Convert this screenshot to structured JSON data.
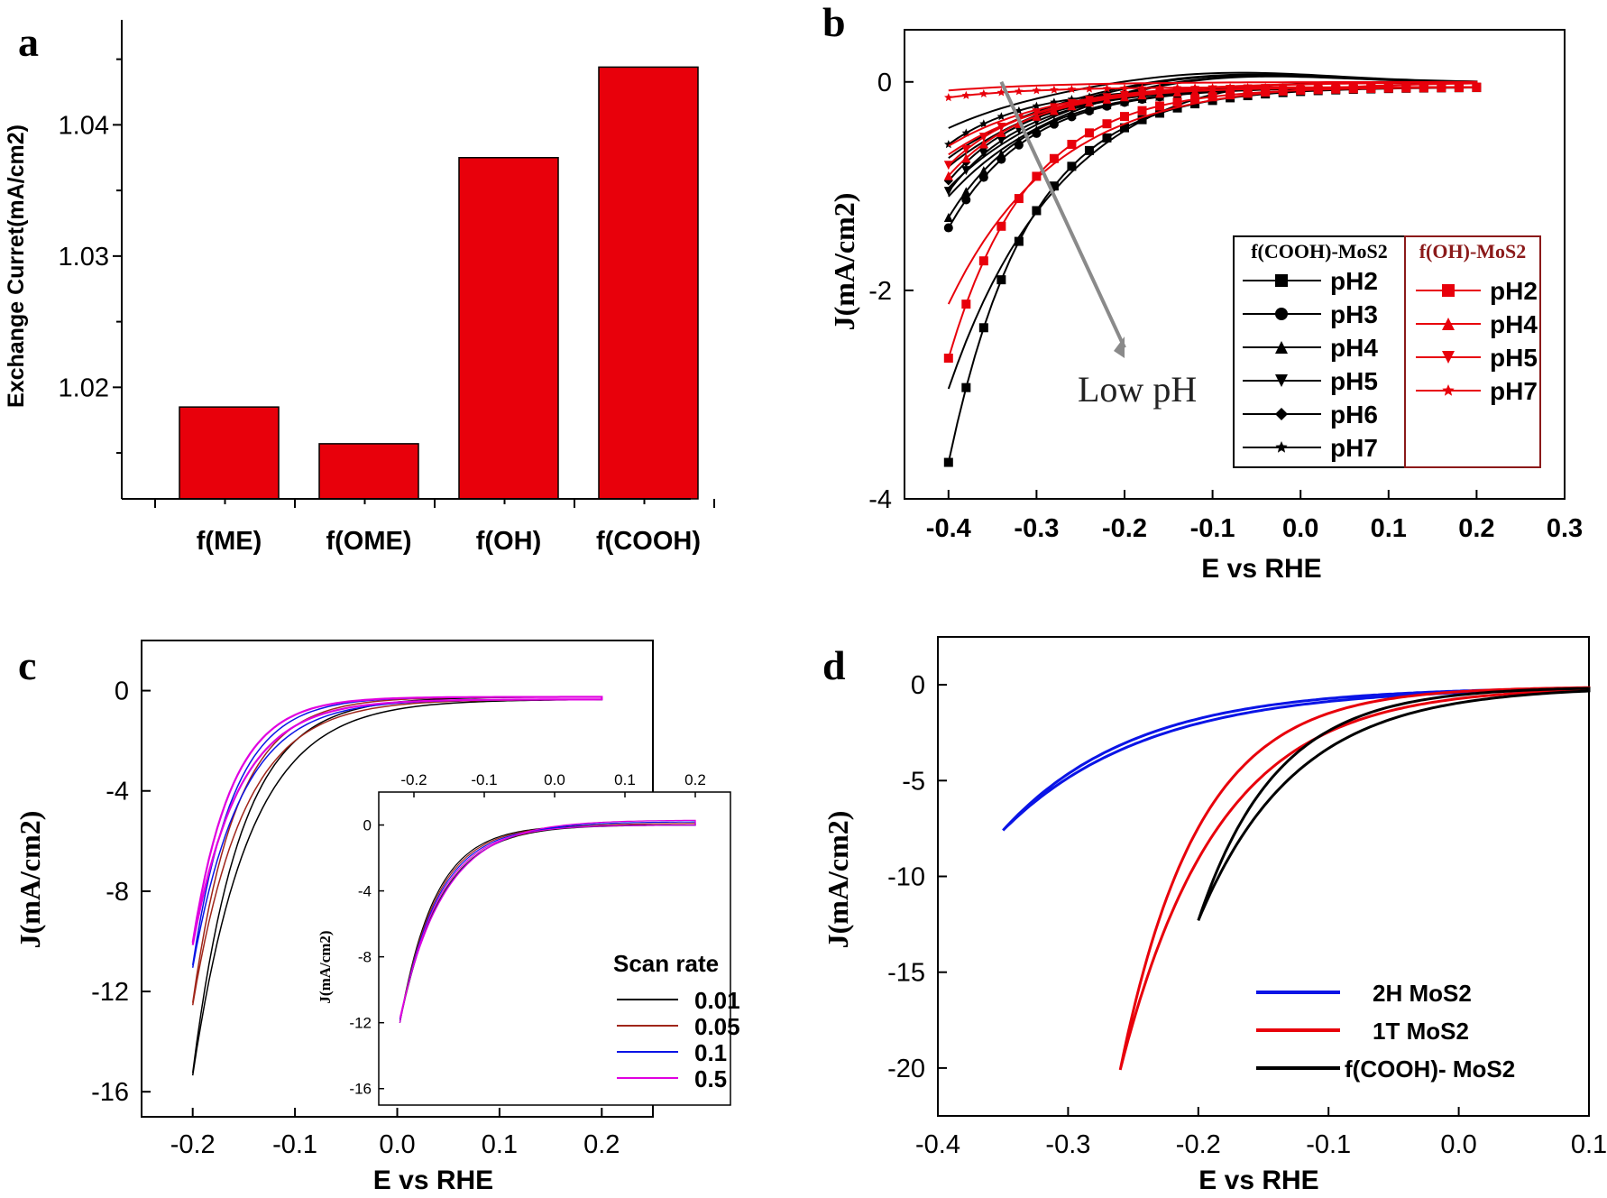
{
  "colors": {
    "red": "#e8000b",
    "black": "#000000",
    "blue": "#0a14e6",
    "magenta": "#e000e0",
    "brown": "#a0261a",
    "arrow": "#8a8a8a",
    "dark_red_text": "#8b1a1a"
  },
  "chart_data": [
    {
      "id": "a",
      "panel_label": "a",
      "type": "bar",
      "title": "",
      "xlabel": "",
      "ylabel": "Exchange Curret(mA/cm2)",
      "categories": [
        "f(ME)",
        "f(OME)",
        "f(OH)",
        "f(COOH)"
      ],
      "values": [
        1.0185,
        1.0157,
        1.0375,
        1.0444
      ],
      "ylim": [
        1.0115,
        1.048
      ],
      "yticks": [
        1.02,
        1.03,
        1.04
      ],
      "ytick_labels": [
        "1.02",
        "1.03",
        "1.04"
      ],
      "grid": false
    },
    {
      "id": "b",
      "panel_label": "b",
      "type": "line",
      "xlabel": "E vs RHE",
      "ylabel": "J(mA/cm2)",
      "xlim": [
        -0.45,
        0.3
      ],
      "ylim": [
        -4,
        0.5
      ],
      "xticks": [
        -0.4,
        -0.3,
        -0.2,
        -0.1,
        0.0,
        0.1,
        0.2,
        0.3
      ],
      "xtick_labels": [
        "-0.4",
        "-0.3",
        "-0.2",
        "-0.1",
        "0.0",
        "0.1",
        "0.2",
        "0.3"
      ],
      "yticks": [
        0,
        -2,
        -4
      ],
      "ytick_labels": [
        "0",
        "-2",
        "-4"
      ],
      "annotation": "Low pH",
      "legend_groups": [
        {
          "title": "f(COOH)-MoS2",
          "entries": [
            "pH2",
            "pH3",
            "pH4",
            "pH5",
            "pH6",
            "pH7"
          ]
        },
        {
          "title": "f(OH)-MoS2",
          "entries": [
            "pH2",
            "pH4",
            "pH5",
            "pH7"
          ]
        }
      ],
      "series": [
        {
          "name": "f(COOH)-MoS2 pH2",
          "color": "black",
          "marker": "square",
          "j_min": -3.6,
          "e_onset": -0.05
        },
        {
          "name": "f(COOH)-MoS2 pH3",
          "color": "black",
          "marker": "circle",
          "j_min": -1.35,
          "e_onset": 0.0
        },
        {
          "name": "f(COOH)-MoS2 pH4",
          "color": "black",
          "marker": "triangle-up",
          "j_min": -1.25,
          "e_onset": 0.0
        },
        {
          "name": "f(COOH)-MoS2 pH5",
          "color": "black",
          "marker": "triangle-down",
          "j_min": -1.0,
          "e_onset": 0.0
        },
        {
          "name": "f(COOH)-MoS2 pH6",
          "color": "black",
          "marker": "diamond",
          "j_min": -0.9,
          "e_onset": 0.0
        },
        {
          "name": "f(COOH)-MoS2 pH7",
          "color": "black",
          "marker": "star",
          "j_min": -0.55,
          "e_onset": 0.05
        },
        {
          "name": "f(OH)-MoS2 pH2",
          "color": "red",
          "marker": "square",
          "j_min": -2.6,
          "e_onset": -0.1
        },
        {
          "name": "f(OH)-MoS2 pH4",
          "color": "red",
          "marker": "triangle-up",
          "j_min": -0.85,
          "e_onset": -0.15
        },
        {
          "name": "f(OH)-MoS2 pH5",
          "color": "red",
          "marker": "triangle-down",
          "j_min": -0.75,
          "e_onset": -0.15
        },
        {
          "name": "f(OH)-MoS2 pH7",
          "color": "red",
          "marker": "star",
          "j_min": -0.1,
          "e_onset": -0.3
        }
      ]
    },
    {
      "id": "c",
      "panel_label": "c",
      "type": "line",
      "xlabel": "E vs RHE",
      "ylabel": "J(mA/cm2)",
      "xlim": [
        -0.25,
        0.25
      ],
      "ylim": [
        -17,
        2
      ],
      "xticks": [
        -0.2,
        -0.1,
        0.0,
        0.1,
        0.2
      ],
      "xtick_labels": [
        "-0.2",
        "-0.1",
        "0.0",
        "0.1",
        "0.2"
      ],
      "yticks": [
        0,
        -4,
        -8,
        -12,
        -16
      ],
      "ytick_labels": [
        "0",
        "-4",
        "-8",
        "-12",
        "-16"
      ],
      "legend_title": "Scan rate",
      "series": [
        {
          "name": "0.01",
          "color": "black",
          "j_min": -15.0
        },
        {
          "name": "0.05",
          "color": "brown",
          "j_min": -12.2
        },
        {
          "name": "0.1",
          "color": "blue",
          "j_min": -10.7
        },
        {
          "name": "0.5",
          "color": "magenta",
          "j_min": -9.8
        }
      ],
      "inset": {
        "xlabel": "",
        "ylabel": "J(mA/cm2)",
        "xlim": [
          -0.25,
          0.25
        ],
        "ylim": [
          -17,
          2
        ],
        "xticks": [
          -0.2,
          -0.1,
          0.0,
          0.1,
          0.2
        ],
        "xtick_labels": [
          "-0.2",
          "-0.1",
          "0.0",
          "0.1",
          "0.2"
        ],
        "yticks": [
          0,
          -4,
          -8,
          -12,
          -16
        ],
        "ytick_labels": [
          "0",
          "-4",
          "-8",
          "-12",
          "-16"
        ],
        "j_min": -12.0
      }
    },
    {
      "id": "d",
      "panel_label": "d",
      "type": "line",
      "xlabel": "E vs RHE",
      "ylabel": "J(mA/cm2)",
      "xlim": [
        -0.4,
        0.1
      ],
      "ylim": [
        -22.5,
        2.5
      ],
      "xticks": [
        -0.4,
        -0.3,
        -0.2,
        -0.1,
        0.0,
        0.1
      ],
      "xtick_labels": [
        "-0.4",
        "-0.3",
        "-0.2",
        "-0.1",
        "0.0",
        "0.1"
      ],
      "yticks": [
        0,
        -5,
        -10,
        -15,
        -20
      ],
      "ytick_labels": [
        "0",
        "-5",
        "-10",
        "-15",
        "-20"
      ],
      "series": [
        {
          "name": "2H MoS2",
          "color": "blue",
          "e_start": -0.35,
          "j_min": -7.5
        },
        {
          "name": "1T MoS2",
          "color": "red",
          "e_start": -0.26,
          "j_min": -20.0
        },
        {
          "name": "f(COOH)-  MoS2",
          "color": "black",
          "e_start": -0.2,
          "j_min": -12.2
        }
      ]
    }
  ]
}
